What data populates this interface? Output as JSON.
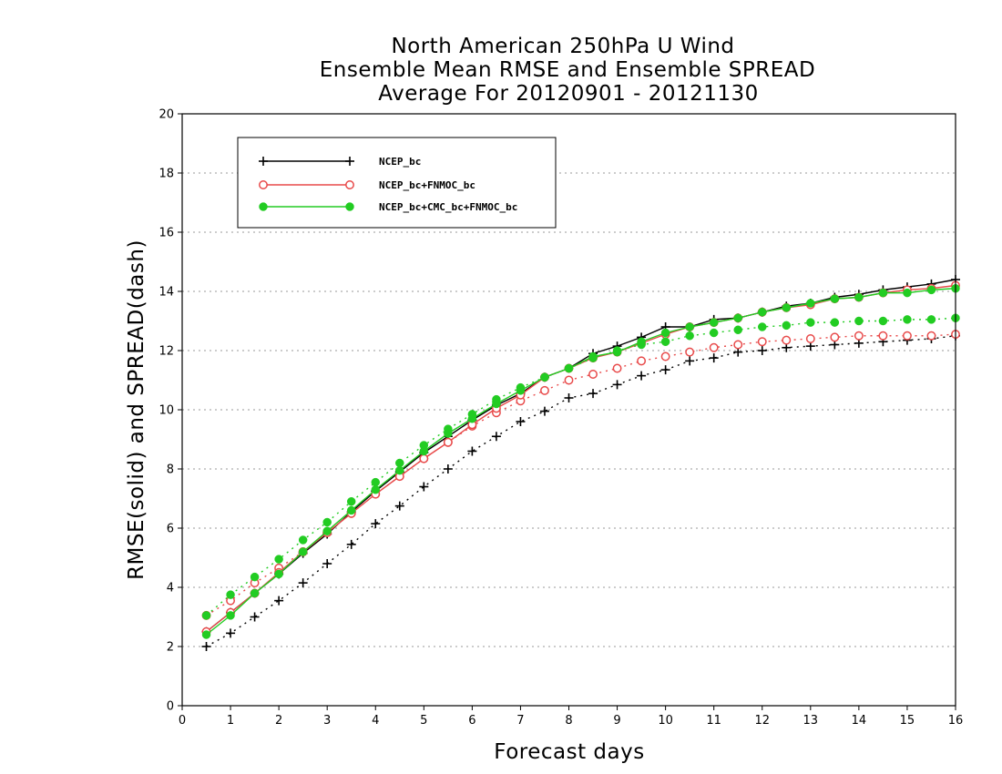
{
  "chart_data": {
    "type": "line",
    "title": [
      "North American 250hPa U Wind",
      "Ensemble Mean RMSE and Ensemble SPREAD",
      "Average For 20120901 - 20121130"
    ],
    "xlabel": "Forecast days",
    "ylabel": "RMSE(solid) and SPREAD(dash)",
    "xlim": [
      0,
      16
    ],
    "ylim": [
      0,
      20
    ],
    "xticks": [
      0,
      1,
      2,
      3,
      4,
      5,
      6,
      7,
      8,
      9,
      10,
      11,
      12,
      13,
      14,
      15,
      16
    ],
    "yticks": [
      0,
      2,
      4,
      6,
      8,
      10,
      12,
      14,
      16,
      18,
      20
    ],
    "grid": "horizontal dotted",
    "legend_placement": "top-left",
    "x": [
      0.5,
      1,
      1.5,
      2,
      2.5,
      3,
      3.5,
      4,
      4.5,
      5,
      5.5,
      6,
      6.5,
      7,
      7.5,
      8,
      8.5,
      9,
      9.5,
      10,
      10.5,
      11,
      11.5,
      12,
      12.5,
      13,
      13.5,
      14,
      14.5,
      15,
      15.5,
      16
    ],
    "series": [
      {
        "name": "NCEP_bc",
        "color": "#000000",
        "marker": "plus",
        "rmse": [
          2.5,
          3.15,
          3.8,
          4.45,
          5.15,
          5.8,
          6.55,
          7.25,
          7.9,
          8.55,
          9.1,
          9.65,
          10.15,
          10.55,
          11.1,
          11.4,
          11.9,
          12.15,
          12.45,
          12.8,
          12.8,
          13.05,
          13.1,
          13.3,
          13.5,
          13.6,
          13.8,
          13.9,
          14.05,
          14.15,
          14.25,
          14.4
        ],
        "spread": [
          2.0,
          2.45,
          3.0,
          3.55,
          4.15,
          4.8,
          5.45,
          6.15,
          6.75,
          7.4,
          8.0,
          8.6,
          9.1,
          9.6,
          9.95,
          10.4,
          10.55,
          10.85,
          11.15,
          11.35,
          11.65,
          11.75,
          11.95,
          12.0,
          12.1,
          12.15,
          12.2,
          12.25,
          12.3,
          12.35,
          12.4,
          12.5
        ]
      },
      {
        "name": "NCEP_bc+FNMOC_bc",
        "color": "#e84a4a",
        "marker": "open-circle",
        "rmse": [
          2.5,
          3.15,
          3.8,
          4.5,
          5.2,
          5.85,
          6.5,
          7.15,
          7.75,
          8.35,
          8.9,
          9.5,
          10.05,
          10.5,
          11.1,
          11.4,
          11.75,
          11.95,
          12.25,
          12.55,
          12.8,
          12.95,
          13.1,
          13.3,
          13.45,
          13.55,
          13.75,
          13.8,
          13.95,
          14.05,
          14.1,
          14.2
        ],
        "spread": [
          3.05,
          3.55,
          4.15,
          4.65,
          5.2,
          5.85,
          6.5,
          7.15,
          7.75,
          8.35,
          8.9,
          9.45,
          9.9,
          10.3,
          10.65,
          11.0,
          11.2,
          11.4,
          11.65,
          11.8,
          11.95,
          12.1,
          12.2,
          12.3,
          12.35,
          12.4,
          12.45,
          12.5,
          12.5,
          12.5,
          12.5,
          12.55
        ]
      },
      {
        "name": "NCEP_bc+CMC_bc+FNMOC_bc",
        "color": "#22cc22",
        "marker": "filled-circle",
        "rmse": [
          2.4,
          3.05,
          3.8,
          4.45,
          5.2,
          5.9,
          6.6,
          7.3,
          7.95,
          8.6,
          9.2,
          9.7,
          10.2,
          10.65,
          11.1,
          11.4,
          11.8,
          11.95,
          12.3,
          12.6,
          12.8,
          12.95,
          13.1,
          13.3,
          13.45,
          13.6,
          13.75,
          13.8,
          13.95,
          13.95,
          14.05,
          14.1
        ],
        "spread": [
          3.05,
          3.75,
          4.35,
          4.95,
          5.6,
          6.2,
          6.9,
          7.55,
          8.2,
          8.8,
          9.35,
          9.85,
          10.35,
          10.75,
          11.1,
          11.4,
          11.75,
          12.0,
          12.2,
          12.3,
          12.5,
          12.6,
          12.7,
          12.8,
          12.85,
          12.95,
          12.95,
          13.0,
          13.0,
          13.05,
          13.05,
          13.1
        ]
      }
    ]
  }
}
